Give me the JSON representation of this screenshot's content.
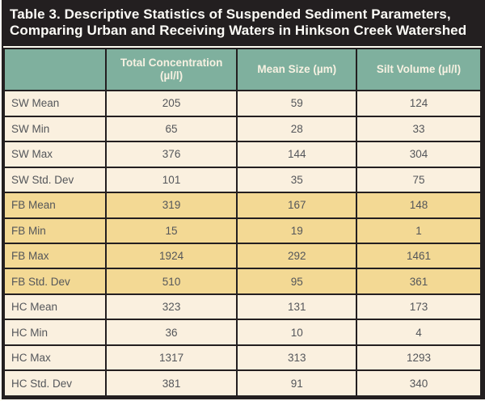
{
  "chart_data": {
    "type": "table",
    "title": "Table 3. Descriptive Statistics of Suspended Sediment Parameters, Comparing Urban and Receiving Waters in Hinkson Creek Watershed",
    "columns": [
      "",
      "Total Concentration (µl/l)",
      "Mean Size (µm)",
      "Silt Volume (µl/l)"
    ],
    "rows": [
      [
        "SW Mean",
        205,
        59,
        124
      ],
      [
        "SW Min",
        65,
        28,
        33
      ],
      [
        "SW Max",
        376,
        144,
        304
      ],
      [
        "SW Std. Dev",
        101,
        35,
        75
      ],
      [
        "FB Mean",
        319,
        167,
        148
      ],
      [
        "FB Min",
        15,
        19,
        1
      ],
      [
        "FB Max",
        1924,
        292,
        1461
      ],
      [
        "FB Std. Dev",
        510,
        95,
        361
      ],
      [
        "HC Mean",
        323,
        131,
        173
      ],
      [
        "HC Min",
        36,
        10,
        4
      ],
      [
        "HC Max",
        1317,
        313,
        1293
      ],
      [
        "HC Std. Dev",
        381,
        91,
        340
      ]
    ],
    "row_groups": {
      "SW": "cream",
      "FB": "tan",
      "HC": "cream"
    }
  },
  "colors": {
    "title_bar_background": "#231f20",
    "title_text": "#fdfcf7",
    "header_background": "#7fb09e",
    "header_text": "#f7f1e2",
    "row_cream_background": "#faf0df",
    "row_tan_background": "#f3d994",
    "cell_text": "#54565a",
    "border": "#231f20"
  }
}
